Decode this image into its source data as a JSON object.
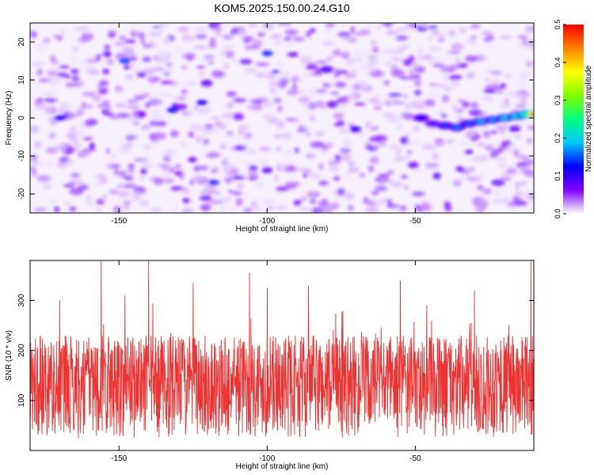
{
  "page": {
    "title": "KOM5.2025.150.00.24.G10"
  },
  "chart_data": [
    {
      "type": "heatmap",
      "xlabel": "Height of straight line (km)",
      "ylabel": "Frequency (Hz)",
      "xlim": [
        -180,
        -10
      ],
      "ylim": [
        -25,
        25
      ],
      "xticks": [
        -150,
        -100,
        -50
      ],
      "yticks": [
        -20,
        -10,
        0,
        10,
        20
      ],
      "colorbar": {
        "label": "Normalized spectral amplitude",
        "range": [
          0,
          0.5
        ],
        "ticks": [
          "0.0",
          "0.1",
          "0.2",
          "0.3",
          "0.4",
          "0.5"
        ],
        "stops": [
          "#ffffff",
          "#8000ff",
          "#0000ff",
          "#00c8ff",
          "#00ff80",
          "#80ff00",
          "#ffff00",
          "#ff8000",
          "#ff0000"
        ]
      },
      "background_level": 0.06,
      "ridge": {
        "points": [
          {
            "x": -48,
            "y": 0.0,
            "amp": 0.12
          },
          {
            "x": -44,
            "y": -1.5,
            "amp": 0.1
          },
          {
            "x": -40,
            "y": -2.0,
            "amp": 0.14
          },
          {
            "x": -36,
            "y": -2.5,
            "amp": 0.16
          },
          {
            "x": -32,
            "y": -1.5,
            "amp": 0.15
          },
          {
            "x": -28,
            "y": -1.0,
            "amp": 0.18
          },
          {
            "x": -24,
            "y": -0.5,
            "amp": 0.17
          },
          {
            "x": -20,
            "y": 0.0,
            "amp": 0.2
          },
          {
            "x": -16,
            "y": 0.5,
            "amp": 0.22
          },
          {
            "x": -13,
            "y": 1.0,
            "amp": 0.26
          },
          {
            "x": -10,
            "y": 1.0,
            "amp": 0.48
          }
        ]
      },
      "hotspots": [
        {
          "x": -148,
          "y": 15,
          "amp": 0.16
        },
        {
          "x": -100,
          "y": 17,
          "amp": 0.15
        },
        {
          "x": -132,
          "y": 2,
          "amp": 0.14
        },
        {
          "x": -170,
          "y": 0,
          "amp": 0.13
        },
        {
          "x": -118,
          "y": -17,
          "amp": 0.14
        },
        {
          "x": -122,
          "y": 4,
          "amp": 0.13
        },
        {
          "x": -70,
          "y": -3,
          "amp": 0.12
        }
      ]
    },
    {
      "type": "line",
      "xlabel": "Height of straight line (km)",
      "ylabel": "SNR (10 * v/v)",
      "xlim": [
        -180,
        -10
      ],
      "ylim": [
        0,
        380
      ],
      "xticks": [
        -150,
        -100,
        -50
      ],
      "yticks": [
        100,
        200,
        300
      ],
      "color": "#ee3333",
      "summary": {
        "typical_low": 25,
        "typical_high": 230,
        "peak_max": 380
      },
      "peaks": [
        {
          "x": -170,
          "value": 300
        },
        {
          "x": -156,
          "value": 380
        },
        {
          "x": -148,
          "value": 310
        },
        {
          "x": -140,
          "value": 380
        },
        {
          "x": -125,
          "value": 335
        },
        {
          "x": -106,
          "value": 355
        },
        {
          "x": -100,
          "value": 325
        },
        {
          "x": -86,
          "value": 330
        },
        {
          "x": -55,
          "value": 340
        },
        {
          "x": -30,
          "value": 320
        },
        {
          "x": -11,
          "value": 380
        }
      ]
    }
  ]
}
